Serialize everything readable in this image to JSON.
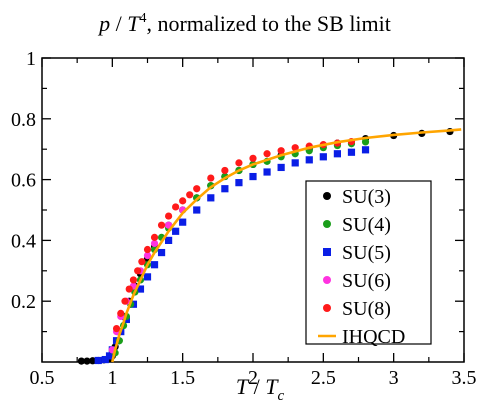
{
  "chart_data": {
    "type": "scatter",
    "title": {
      "p": "p",
      "slash": " / ",
      "T": "T",
      "exp": "4",
      "rest": ", normalized to the SB limit"
    },
    "xlabel": {
      "T": "T",
      "slash": " / ",
      "Tc": "T",
      "sub": "c"
    },
    "ylabel": "",
    "xlim": [
      0.5,
      3.5
    ],
    "ylim": [
      0,
      1
    ],
    "xticks": [
      0.5,
      1,
      1.5,
      2,
      2.5,
      3,
      3.5
    ],
    "xtick_labels": [
      "0.5",
      "1",
      "1.5",
      "2",
      "2.5",
      "3",
      "3.5"
    ],
    "yticks": [
      0.2,
      0.4,
      0.6,
      0.8,
      1
    ],
    "ytick_labels": [
      "0.2",
      "0.4",
      "0.6",
      "0.8",
      "1"
    ],
    "grid": false,
    "legend_position": "lower-right",
    "series": [
      {
        "name": "SU(3)",
        "marker": "circle",
        "color": "#000000",
        "x": [
          0.78,
          0.82,
          0.86,
          0.9,
          0.94,
          0.98,
          1.0,
          1.02,
          1.05,
          1.08,
          1.12,
          1.16,
          1.2,
          1.25,
          1.3,
          1.4,
          1.5,
          1.6,
          1.7,
          1.8,
          1.9,
          2.0,
          2.2,
          2.4,
          2.6,
          2.8,
          3.0,
          3.2,
          3.4
        ],
        "y": [
          0.003,
          0.003,
          0.004,
          0.005,
          0.007,
          0.012,
          0.02,
          0.05,
          0.1,
          0.15,
          0.2,
          0.25,
          0.29,
          0.34,
          0.38,
          0.45,
          0.5,
          0.54,
          0.58,
          0.61,
          0.63,
          0.65,
          0.68,
          0.7,
          0.72,
          0.735,
          0.745,
          0.752,
          0.758
        ]
      },
      {
        "name": "SU(4)",
        "marker": "circle",
        "color": "#1a9e1a",
        "x": [
          1.02,
          1.05,
          1.08,
          1.1,
          1.13,
          1.16,
          1.2,
          1.25,
          1.3,
          1.35,
          1.4,
          1.5,
          1.6,
          1.7,
          1.8,
          1.9,
          2.0,
          2.1,
          2.2,
          2.3,
          2.4,
          2.5,
          2.6,
          2.7,
          2.8
        ],
        "y": [
          0.03,
          0.07,
          0.12,
          0.15,
          0.19,
          0.23,
          0.27,
          0.32,
          0.37,
          0.41,
          0.44,
          0.5,
          0.54,
          0.58,
          0.61,
          0.63,
          0.65,
          0.66,
          0.675,
          0.685,
          0.695,
          0.705,
          0.712,
          0.718,
          0.724
        ]
      },
      {
        "name": "SU(5)",
        "marker": "square",
        "color": "#0a1ee6",
        "x": [
          0.9,
          0.95,
          0.98,
          1.0,
          1.03,
          1.06,
          1.1,
          1.15,
          1.2,
          1.25,
          1.3,
          1.35,
          1.4,
          1.45,
          1.5,
          1.6,
          1.7,
          1.8,
          1.9,
          2.0,
          2.1,
          2.2,
          2.3,
          2.4,
          2.5,
          2.6,
          2.7,
          2.8
        ],
        "y": [
          0.005,
          0.008,
          0.02,
          0.04,
          0.07,
          0.1,
          0.14,
          0.19,
          0.24,
          0.28,
          0.32,
          0.36,
          0.4,
          0.43,
          0.46,
          0.5,
          0.54,
          0.57,
          0.59,
          0.61,
          0.625,
          0.64,
          0.655,
          0.665,
          0.675,
          0.685,
          0.69,
          0.698
        ]
      },
      {
        "name": "SU(6)",
        "marker": "circle",
        "color": "#ff33e0",
        "x": [
          1.0,
          1.03,
          1.06,
          1.1,
          1.15,
          1.2,
          1.25,
          1.3,
          1.4,
          1.5
        ],
        "y": [
          0.04,
          0.1,
          0.15,
          0.2,
          0.25,
          0.3,
          0.35,
          0.39,
          0.45,
          0.5
        ]
      },
      {
        "name": "SU(8)",
        "marker": "circle",
        "color": "#ff1a1a",
        "x": [
          1.03,
          1.06,
          1.09,
          1.12,
          1.15,
          1.18,
          1.21,
          1.25,
          1.3,
          1.35,
          1.4,
          1.45,
          1.5,
          1.55,
          1.6,
          1.7,
          1.8,
          1.9,
          2.0,
          2.1,
          2.2,
          2.3,
          2.4,
          2.5,
          2.6,
          2.7
        ],
        "y": [
          0.11,
          0.16,
          0.2,
          0.24,
          0.27,
          0.3,
          0.33,
          0.37,
          0.41,
          0.45,
          0.48,
          0.51,
          0.53,
          0.55,
          0.57,
          0.605,
          0.63,
          0.655,
          0.67,
          0.685,
          0.695,
          0.705,
          0.71,
          0.715,
          0.72,
          0.725
        ]
      },
      {
        "name": "IHQCD",
        "marker": "line",
        "color": "#ffa500",
        "x": [
          1.0,
          1.02,
          1.05,
          1.08,
          1.1,
          1.15,
          1.2,
          1.25,
          1.3,
          1.4,
          1.5,
          1.6,
          1.7,
          1.8,
          1.9,
          2.0,
          2.2,
          2.4,
          2.6,
          2.8,
          3.0,
          3.2,
          3.4,
          3.48
        ],
        "y": [
          0.0,
          0.04,
          0.09,
          0.13,
          0.16,
          0.22,
          0.27,
          0.32,
          0.36,
          0.43,
          0.49,
          0.535,
          0.575,
          0.605,
          0.63,
          0.65,
          0.68,
          0.705,
          0.723,
          0.737,
          0.747,
          0.755,
          0.762,
          0.765
        ]
      }
    ]
  }
}
